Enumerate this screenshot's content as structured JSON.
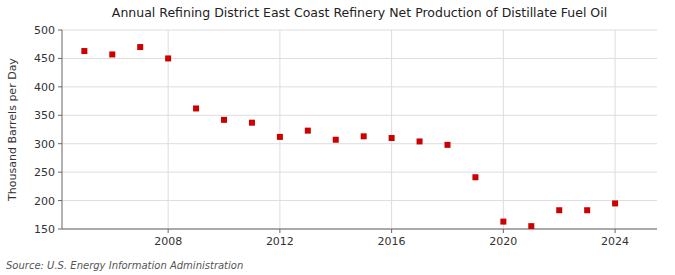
{
  "chart_data": {
    "type": "scatter",
    "title": "Annual Refining District East Coast Refinery Net Production of Distillate Fuel Oil",
    "ylabel": "Thousand Barrels per Day",
    "source": "Source: U.S. Energy Information Administration",
    "x": [
      2005,
      2006,
      2007,
      2008,
      2009,
      2010,
      2011,
      2012,
      2013,
      2014,
      2015,
      2016,
      2017,
      2018,
      2019,
      2020,
      2021,
      2022,
      2023,
      2024
    ],
    "values": [
      463,
      457,
      470,
      450,
      362,
      342,
      337,
      312,
      323,
      307,
      313,
      310,
      304,
      298,
      241,
      163,
      155,
      183,
      183,
      195
    ],
    "color": "#cc0000",
    "marker": "square",
    "xlim": [
      2004.2,
      2025.5
    ],
    "xticks": [
      2008,
      2012,
      2016,
      2020,
      2024
    ],
    "ylim": [
      150,
      500
    ],
    "yticks": [
      150,
      200,
      250,
      300,
      350,
      400,
      450,
      500
    ],
    "grid": true
  }
}
